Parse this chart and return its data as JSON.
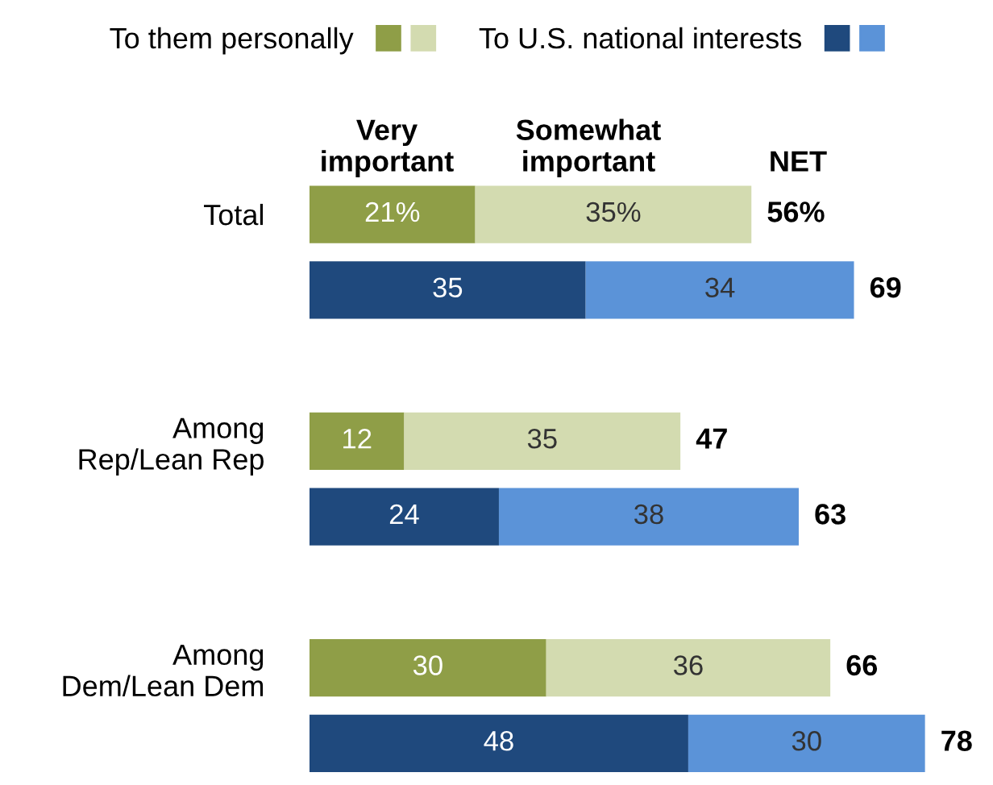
{
  "chart_data": {
    "type": "bar",
    "orientation": "horizontal",
    "stacked": true,
    "categories": [
      "Total",
      null,
      null,
      "Among\nRep/Lean Rep",
      null,
      null,
      "Among\nDem/Lean Dem",
      null
    ],
    "series": [
      {
        "name": "To them personally",
        "color": "#8f9e47",
        "values": [
          21,
          null,
          null,
          12,
          null,
          null,
          30,
          null
        ],
        "value_labels": [
          "21%",
          null,
          null,
          "12",
          null,
          null,
          "30",
          null
        ]
      },
      {
        "color": "#d3dbb0",
        "values": [
          35,
          null,
          null,
          35,
          null,
          null,
          36,
          null
        ],
        "value_labels": [
          "35%",
          null,
          null,
          "35",
          null,
          null,
          "36",
          null
        ]
      },
      {
        "name": "To U.S. national interests",
        "color": "#1f497d",
        "values": [
          null,
          35,
          null,
          null,
          24,
          null,
          null,
          48
        ],
        "value_labels": [
          null,
          "35",
          null,
          null,
          "24",
          null,
          null,
          "48"
        ]
      },
      {
        "color": "#5b93d8",
        "values": [
          null,
          34,
          null,
          null,
          38,
          null,
          null,
          30
        ],
        "value_labels": [
          null,
          "34",
          null,
          null,
          "38",
          null,
          null,
          "30"
        ]
      }
    ],
    "totals": [
      "56%",
      "69",
      null,
      "47",
      "63",
      null,
      "66",
      "78"
    ],
    "annotations": [
      "Very\nimportant",
      "Somewhat\nimportant",
      "NET"
    ],
    "legend": "top"
  }
}
